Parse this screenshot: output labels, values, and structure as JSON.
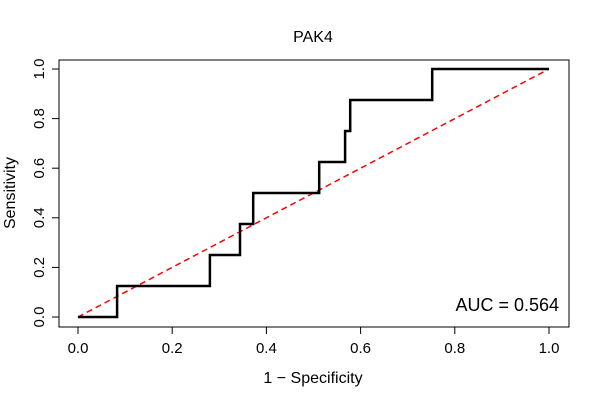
{
  "chart_data": {
    "type": "line",
    "title": "PAK4",
    "xlabel": "1 − Specificity",
    "ylabel": "Sensitivity",
    "xlim": [
      0,
      1
    ],
    "ylim": [
      0,
      1
    ],
    "x_ticks": [
      {
        "value": 0.0,
        "label": "0.0"
      },
      {
        "value": 0.2,
        "label": "0.2"
      },
      {
        "value": 0.4,
        "label": "0.4"
      },
      {
        "value": 0.6,
        "label": "0.6"
      },
      {
        "value": 0.8,
        "label": "0.8"
      },
      {
        "value": 1.0,
        "label": "1.0"
      }
    ],
    "y_ticks": [
      {
        "value": 0.0,
        "label": "0.0"
      },
      {
        "value": 0.2,
        "label": "0.2"
      },
      {
        "value": 0.4,
        "label": "0.4"
      },
      {
        "value": 0.6,
        "label": "0.6"
      },
      {
        "value": 0.8,
        "label": "0.8"
      },
      {
        "value": 1.0,
        "label": "1.0"
      }
    ],
    "series": [
      {
        "name": "ROC curve",
        "color": "#000000",
        "style": "solid",
        "points": [
          {
            "x": 0.0,
            "y": 0.0
          },
          {
            "x": 0.083,
            "y": 0.0
          },
          {
            "x": 0.083,
            "y": 0.125
          },
          {
            "x": 0.28,
            "y": 0.125
          },
          {
            "x": 0.28,
            "y": 0.25
          },
          {
            "x": 0.344,
            "y": 0.25
          },
          {
            "x": 0.344,
            "y": 0.375
          },
          {
            "x": 0.372,
            "y": 0.375
          },
          {
            "x": 0.372,
            "y": 0.5
          },
          {
            "x": 0.512,
            "y": 0.5
          },
          {
            "x": 0.512,
            "y": 0.625
          },
          {
            "x": 0.567,
            "y": 0.625
          },
          {
            "x": 0.567,
            "y": 0.75
          },
          {
            "x": 0.578,
            "y": 0.75
          },
          {
            "x": 0.578,
            "y": 0.875
          },
          {
            "x": 0.752,
            "y": 0.875
          },
          {
            "x": 0.752,
            "y": 1.0
          },
          {
            "x": 1.0,
            "y": 1.0
          }
        ]
      },
      {
        "name": "Reference line",
        "color": "#ff0000",
        "style": "dashed",
        "points": [
          {
            "x": 0.0,
            "y": 0.0
          },
          {
            "x": 1.0,
            "y": 1.0
          }
        ]
      }
    ],
    "annotation": "AUC = 0.564",
    "auc": 0.564
  }
}
